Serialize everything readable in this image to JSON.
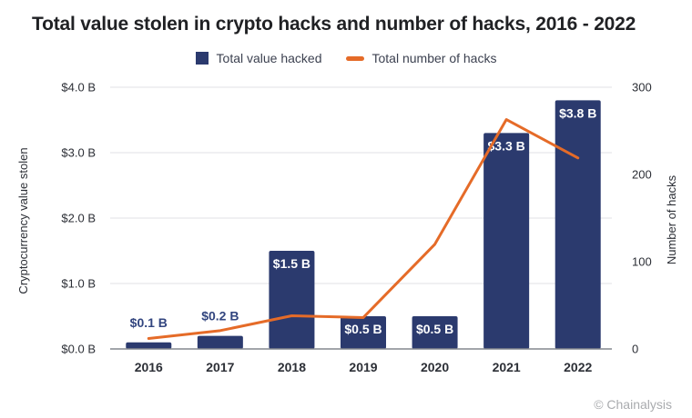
{
  "page": {
    "title": "Total value stolen in crypto hacks and number of hacks, 2016 - 2022",
    "footer": "© Chainalysis"
  },
  "legend": {
    "items": [
      {
        "label": "Total value hacked",
        "marker": "square",
        "color": "#2b3a6e"
      },
      {
        "label": "Total number of hacks",
        "marker": "dash",
        "color": "#e56b28"
      }
    ]
  },
  "colors": {
    "bar": "#2b3a6e",
    "line": "#e56b28",
    "label_above": "#32457f",
    "bar_label_inside": "#ffffff",
    "grid": "#e7e7e9",
    "axis": "#84878d",
    "title": "#202124",
    "tick": "#2c2f36",
    "legend_text": "#3c4150",
    "footer": "#a9abae"
  },
  "chart_data": {
    "type": "combo_bar_line",
    "title": "Total value stolen in crypto hacks and number of hacks, 2016 - 2022",
    "categories": [
      "2016",
      "2017",
      "2018",
      "2019",
      "2020",
      "2021",
      "2022"
    ],
    "series": [
      {
        "name": "Total value hacked",
        "type": "bar",
        "axis": "left",
        "color": "#2b3a6e",
        "values": [
          0.1,
          0.2,
          1.5,
          0.5,
          0.5,
          3.3,
          3.8
        ],
        "labels": [
          "$0.1 B",
          "$0.2 B",
          "$1.5 B",
          "$0.5 B",
          "$0.5 B",
          "$3.3 B",
          "$3.8 B"
        ]
      },
      {
        "name": "Total number of hacks",
        "type": "line",
        "axis": "right",
        "color": "#e56b28",
        "values": [
          12,
          21,
          38,
          36,
          120,
          263,
          219
        ]
      }
    ],
    "left_axis": {
      "title": "Cryptocurrency value stolen",
      "min": 0,
      "max": 4,
      "ticks": [
        {
          "v": 0,
          "label": "$0.0 B"
        },
        {
          "v": 1,
          "label": "$1.0 B"
        },
        {
          "v": 2,
          "label": "$2.0 B"
        },
        {
          "v": 3,
          "label": "$3.0 B"
        },
        {
          "v": 4,
          "label": "$4.0 B"
        }
      ]
    },
    "right_axis": {
      "title": "Number of hacks",
      "min": 0,
      "max": 300,
      "ticks": [
        {
          "v": 0,
          "label": "0"
        },
        {
          "v": 100,
          "label": "100"
        },
        {
          "v": 200,
          "label": "200"
        },
        {
          "v": 300,
          "label": "300"
        }
      ]
    },
    "grid": "horizontal",
    "legend_position": "top-center"
  }
}
